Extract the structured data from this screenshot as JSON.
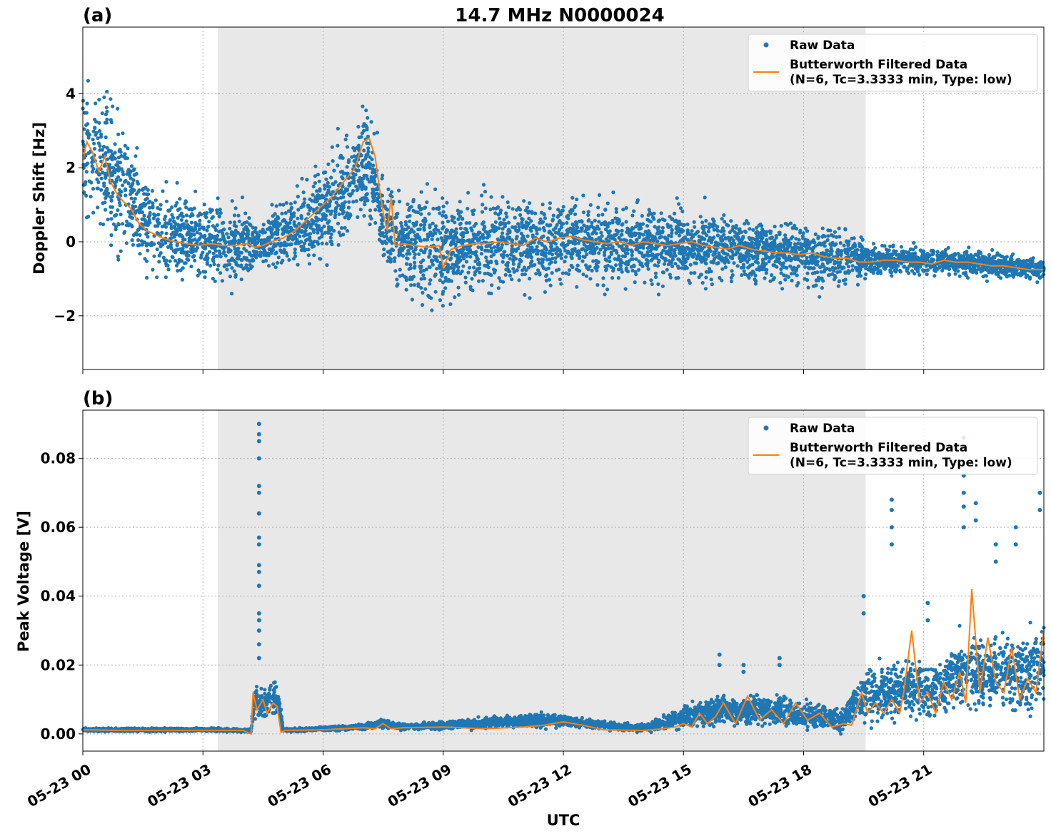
{
  "figure": {
    "title": "14.7 MHz N0000024",
    "xlabel": "UTC",
    "x_ticks": [
      "05-23 00",
      "05-23 03",
      "05-23 06",
      "05-23 09",
      "05-23 12",
      "05-23 15",
      "05-23 18",
      "05-23 21"
    ],
    "x_tick_hours": [
      0,
      3,
      6,
      9,
      12,
      15,
      18,
      21
    ],
    "xlim_hours": [
      0,
      24
    ],
    "shaded_span_hours": [
      3.37,
      19.55
    ],
    "colors": {
      "raw": "#1f77b4",
      "filtered": "#ff7f0e",
      "shade": "#e8e8e8",
      "grid": "#b0b0b0"
    }
  },
  "chart_data": [
    {
      "type": "scatter",
      "panel_label": "(a)",
      "ylabel": "Doppler Shift [Hz]",
      "ylim": [
        -3.45,
        5.8
      ],
      "y_ticks": [
        -2,
        0,
        2,
        4
      ],
      "y_tick_labels": [
        "−2",
        "0",
        "2",
        "4"
      ],
      "grid": true,
      "legend_position": "top-right",
      "legend": {
        "raw_label": "Raw Data",
        "filtered_label_1": "Butterworth Filtered Data",
        "filtered_label_2": "(N=6, Tc=3.3333 min, Type: low)"
      },
      "series": [
        {
          "name": "Butterworth Filtered Data",
          "x_hours": [
            0,
            0.1,
            0.25,
            0.4,
            0.55,
            0.7,
            0.85,
            1.0,
            1.2,
            1.4,
            1.6,
            1.8,
            2.0,
            2.3,
            2.6,
            2.9,
            3.2,
            3.5,
            3.8,
            4.1,
            4.3,
            4.5,
            4.7,
            5.0,
            5.3,
            5.6,
            5.9,
            6.2,
            6.5,
            6.8,
            7.0,
            7.15,
            7.3,
            7.4,
            7.5,
            7.6,
            7.7,
            7.8,
            8.0,
            8.3,
            8.6,
            8.9,
            9.0,
            9.2,
            9.5,
            9.8,
            10.1,
            10.4,
            10.7,
            11.0,
            11.3,
            11.6,
            11.9,
            12.2,
            12.5,
            12.8,
            13.1,
            13.4,
            13.7,
            14.0,
            14.3,
            14.6,
            14.9,
            15.2,
            15.5,
            15.8,
            16.1,
            16.4,
            16.7,
            17.0,
            17.3,
            17.6,
            17.9,
            18.2,
            18.5,
            18.8,
            19.1,
            19.4,
            19.7,
            20.0,
            20.3,
            20.6,
            20.9,
            21.2,
            21.5,
            21.8,
            22.1,
            22.4,
            22.7,
            23.0,
            23.3,
            23.6,
            24.0
          ],
          "y": [
            2.2,
            2.7,
            2.4,
            1.9,
            2.3,
            1.6,
            1.3,
            1.1,
            0.9,
            0.5,
            0.3,
            0.2,
            0.1,
            0.0,
            -0.05,
            -0.1,
            -0.05,
            -0.1,
            -0.1,
            -0.05,
            -0.15,
            -0.1,
            0.0,
            0.1,
            0.3,
            0.6,
            0.9,
            1.2,
            1.6,
            2.0,
            2.7,
            2.8,
            2.3,
            1.5,
            0.8,
            0.3,
            1.2,
            -0.1,
            -0.05,
            -0.1,
            -0.15,
            -0.1,
            -0.7,
            -0.2,
            -0.1,
            -0.05,
            -0.05,
            0.0,
            -0.05,
            -0.1,
            0.1,
            0.0,
            0.1,
            0.15,
            0.05,
            0.0,
            -0.05,
            0.0,
            -0.1,
            0.0,
            -0.05,
            -0.1,
            -0.05,
            0.0,
            -0.1,
            -0.15,
            -0.2,
            -0.1,
            -0.2,
            -0.25,
            -0.3,
            -0.3,
            -0.35,
            -0.3,
            -0.4,
            -0.45,
            -0.45,
            -0.55,
            -0.55,
            -0.5,
            -0.5,
            -0.55,
            -0.55,
            -0.6,
            -0.5,
            -0.55,
            -0.55,
            -0.6,
            -0.65,
            -0.65,
            -0.7,
            -0.75,
            -0.75
          ]
        },
        {
          "name": "Raw Data",
          "description_free": true,
          "center_x_hours": [
            0,
            0.5,
            1.0,
            1.5,
            2.0,
            3.0,
            4.2,
            4.3,
            5.0,
            6.0,
            6.5,
            7.0,
            7.3,
            7.5,
            7.7,
            8.0,
            9.0,
            10.0,
            11.0,
            12.0,
            13.0,
            14.0,
            15.0,
            16.0,
            17.0,
            18.0,
            19.0,
            19.6,
            20.5,
            21.5,
            22.5,
            23.5,
            24.0
          ],
          "center_y": [
            2.5,
            2.1,
            1.4,
            0.7,
            0.3,
            0.0,
            -0.1,
            -0.1,
            0.2,
            0.7,
            1.4,
            2.1,
            1.7,
            0.5,
            0.2,
            -0.1,
            -0.2,
            -0.1,
            0.0,
            0.1,
            -0.05,
            -0.05,
            -0.1,
            -0.15,
            -0.25,
            -0.3,
            -0.4,
            -0.5,
            -0.5,
            -0.55,
            -0.6,
            -0.7,
            -0.75
          ],
          "spread": [
            1.8,
            1.8,
            1.6,
            1.4,
            1.2,
            1.1,
            1.0,
            0.5,
            0.9,
            1.2,
            1.3,
            1.5,
            1.2,
            1.0,
            1.5,
            1.4,
            1.4,
            1.3,
            1.2,
            1.1,
            1.1,
            1.1,
            1.0,
            0.9,
            0.8,
            0.8,
            0.8,
            0.4,
            0.35,
            0.35,
            0.35,
            0.3,
            0.3
          ]
        }
      ]
    },
    {
      "type": "scatter",
      "panel_label": "(b)",
      "ylabel": "Peak Voltage [V]",
      "ylim": [
        -0.005,
        0.094
      ],
      "y_ticks": [
        0,
        0.02,
        0.04,
        0.06,
        0.08
      ],
      "y_tick_labels": [
        "0.00",
        "0.02",
        "0.04",
        "0.06",
        "0.08"
      ],
      "grid": true,
      "legend_position": "top-right",
      "legend": {
        "raw_label": "Raw Data",
        "filtered_label_1": "Butterworth Filtered Data",
        "filtered_label_2": "(N=6, Tc=3.3333 min, Type: low)"
      },
      "series": [
        {
          "name": "Butterworth Filtered Data",
          "x_hours": [
            0,
            1,
            2,
            3,
            4.0,
            4.2,
            4.25,
            4.35,
            4.5,
            4.6,
            4.75,
            4.85,
            4.95,
            5.05,
            6,
            7,
            7.3,
            7.5,
            7.7,
            8,
            9,
            10,
            11,
            11.5,
            12,
            12.5,
            13,
            14,
            14.5,
            14.8,
            15.0,
            15.2,
            15.4,
            15.6,
            15.8,
            16.0,
            16.3,
            16.6,
            16.9,
            17.2,
            17.5,
            17.8,
            18.1,
            18.4,
            18.7,
            19.0,
            19.2,
            19.45,
            19.6,
            19.8,
            20.0,
            20.2,
            20.4,
            20.5,
            20.7,
            20.9,
            21.1,
            21.3,
            21.5,
            21.7,
            21.9,
            22.05,
            22.2,
            22.4,
            22.6,
            22.8,
            23.0,
            23.2,
            23.4,
            23.6,
            23.8,
            24.0
          ],
          "y": [
            0.0012,
            0.001,
            0.001,
            0.001,
            0.001,
            0.0,
            0.012,
            0.007,
            0.01,
            0.006,
            0.009,
            0.008,
            0.0005,
            0.001,
            0.0012,
            0.0018,
            0.0015,
            0.003,
            0.0015,
            0.0018,
            0.002,
            0.0015,
            0.002,
            0.0025,
            0.0035,
            0.0025,
            0.0012,
            0.001,
            0.0015,
            0.002,
            0.003,
            0.002,
            0.006,
            0.003,
            0.005,
            0.009,
            0.003,
            0.011,
            0.004,
            0.007,
            0.003,
            0.009,
            0.004,
            0.006,
            0.002,
            0.003,
            0.0025,
            0.012,
            0.006,
            0.009,
            0.006,
            0.01,
            0.006,
            0.012,
            0.03,
            0.009,
            0.012,
            0.006,
            0.015,
            0.01,
            0.018,
            0.009,
            0.042,
            0.012,
            0.028,
            0.015,
            0.012,
            0.025,
            0.01,
            0.016,
            0.012,
            0.03
          ]
        },
        {
          "name": "Raw Data",
          "center_x_hours": [
            0,
            3,
            4.2,
            4.3,
            4.5,
            4.7,
            4.9,
            5.0,
            7.0,
            7.5,
            8.0,
            11.5,
            12.0,
            12.5,
            14.0,
            15.0,
            16.0,
            17.0,
            18.0,
            19.0,
            19.5,
            20.0,
            20.5,
            21.0,
            21.5,
            22.0,
            22.5,
            23.0,
            23.5,
            24.0
          ],
          "center_y": [
            0.0012,
            0.0012,
            0.001,
            0.01,
            0.008,
            0.011,
            0.009,
            0.001,
            0.002,
            0.003,
            0.002,
            0.004,
            0.004,
            0.003,
            0.0015,
            0.005,
            0.007,
            0.007,
            0.006,
            0.004,
            0.012,
            0.012,
            0.014,
            0.012,
            0.014,
            0.018,
            0.017,
            0.018,
            0.018,
            0.02
          ],
          "spread": [
            0.0005,
            0.0005,
            0.0005,
            0.004,
            0.004,
            0.004,
            0.004,
            0.0005,
            0.0008,
            0.0012,
            0.0008,
            0.002,
            0.0015,
            0.0012,
            0.001,
            0.003,
            0.004,
            0.004,
            0.004,
            0.003,
            0.007,
            0.008,
            0.008,
            0.008,
            0.009,
            0.011,
            0.01,
            0.01,
            0.011,
            0.012
          ],
          "spikes": [
            {
              "x": 4.4,
              "y": [
                0.09,
                0.087,
                0.085,
                0.08,
                0.072,
                0.07,
                0.064,
                0.057,
                0.055,
                0.049,
                0.047,
                0.043,
                0.035,
                0.033,
                0.03,
                0.026,
                0.022
              ]
            },
            {
              "x": 15.9,
              "y": [
                0.023,
                0.02
              ]
            },
            {
              "x": 16.5,
              "y": [
                0.02,
                0.018
              ]
            },
            {
              "x": 17.4,
              "y": [
                0.022,
                0.02
              ]
            },
            {
              "x": 19.5,
              "y": [
                0.04,
                0.035
              ]
            },
            {
              "x": 20.2,
              "y": [
                0.068,
                0.065,
                0.06,
                0.055
              ]
            },
            {
              "x": 21.1,
              "y": [
                0.038,
                0.033
              ]
            },
            {
              "x": 22.0,
              "y": [
                0.086,
                0.075,
                0.07,
                0.066,
                0.06
              ]
            },
            {
              "x": 22.3,
              "y": [
                0.067,
                0.062
              ]
            },
            {
              "x": 22.8,
              "y": [
                0.055,
                0.05
              ]
            },
            {
              "x": 23.3,
              "y": [
                0.06,
                0.055
              ]
            },
            {
              "x": 23.9,
              "y": [
                0.07,
                0.065
              ]
            }
          ]
        }
      ]
    }
  ]
}
